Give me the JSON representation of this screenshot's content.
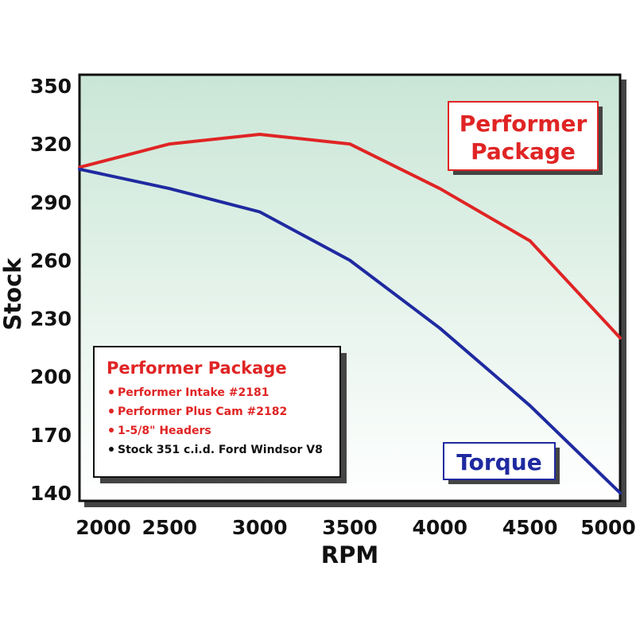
{
  "chart_data": {
    "type": "line",
    "xlabel": "RPM",
    "ylabel": "Stock",
    "xlim": [
      2000,
      5000
    ],
    "ylim": [
      140,
      350
    ],
    "x_ticks": [
      "2000",
      "2500",
      "3000",
      "3500",
      "4000",
      "4500",
      "5000"
    ],
    "y_ticks": [
      "350",
      "320",
      "290",
      "260",
      "230",
      "200",
      "170",
      "140"
    ],
    "grid": false,
    "series": [
      {
        "name": "Performer Package",
        "color": "#e02424",
        "x": [
          2000,
          2500,
          3000,
          3500,
          4000,
          4500,
          5000
        ],
        "y": [
          308,
          320,
          325,
          320,
          297,
          270,
          220
        ]
      },
      {
        "name": "Torque",
        "color": "#1f2aa0",
        "x": [
          2000,
          2500,
          3000,
          3500,
          4000,
          4500,
          5000
        ],
        "y": [
          307,
          297,
          285,
          260,
          225,
          185,
          140
        ]
      }
    ],
    "annotations": {
      "performer_callout": [
        "Performer",
        "Package"
      ],
      "torque_callout": "Torque"
    },
    "legend": {
      "placement": "bottom-left",
      "title": "Performer Package",
      "items": [
        {
          "text": "Performer Intake #2181",
          "color": "#e02424"
        },
        {
          "text": "Performer Plus Cam #2182",
          "color": "#e02424"
        },
        {
          "text": "1-5/8\" Headers",
          "color": "#e02424"
        },
        {
          "text": "Stock 351 c.i.d. Ford Windsor V8",
          "color": "#111111"
        }
      ]
    },
    "colors": {
      "plot_top": "#c9e6d6",
      "plot_bottom": "#ffffff",
      "frame": "#111111",
      "shadow": "#444444"
    }
  }
}
